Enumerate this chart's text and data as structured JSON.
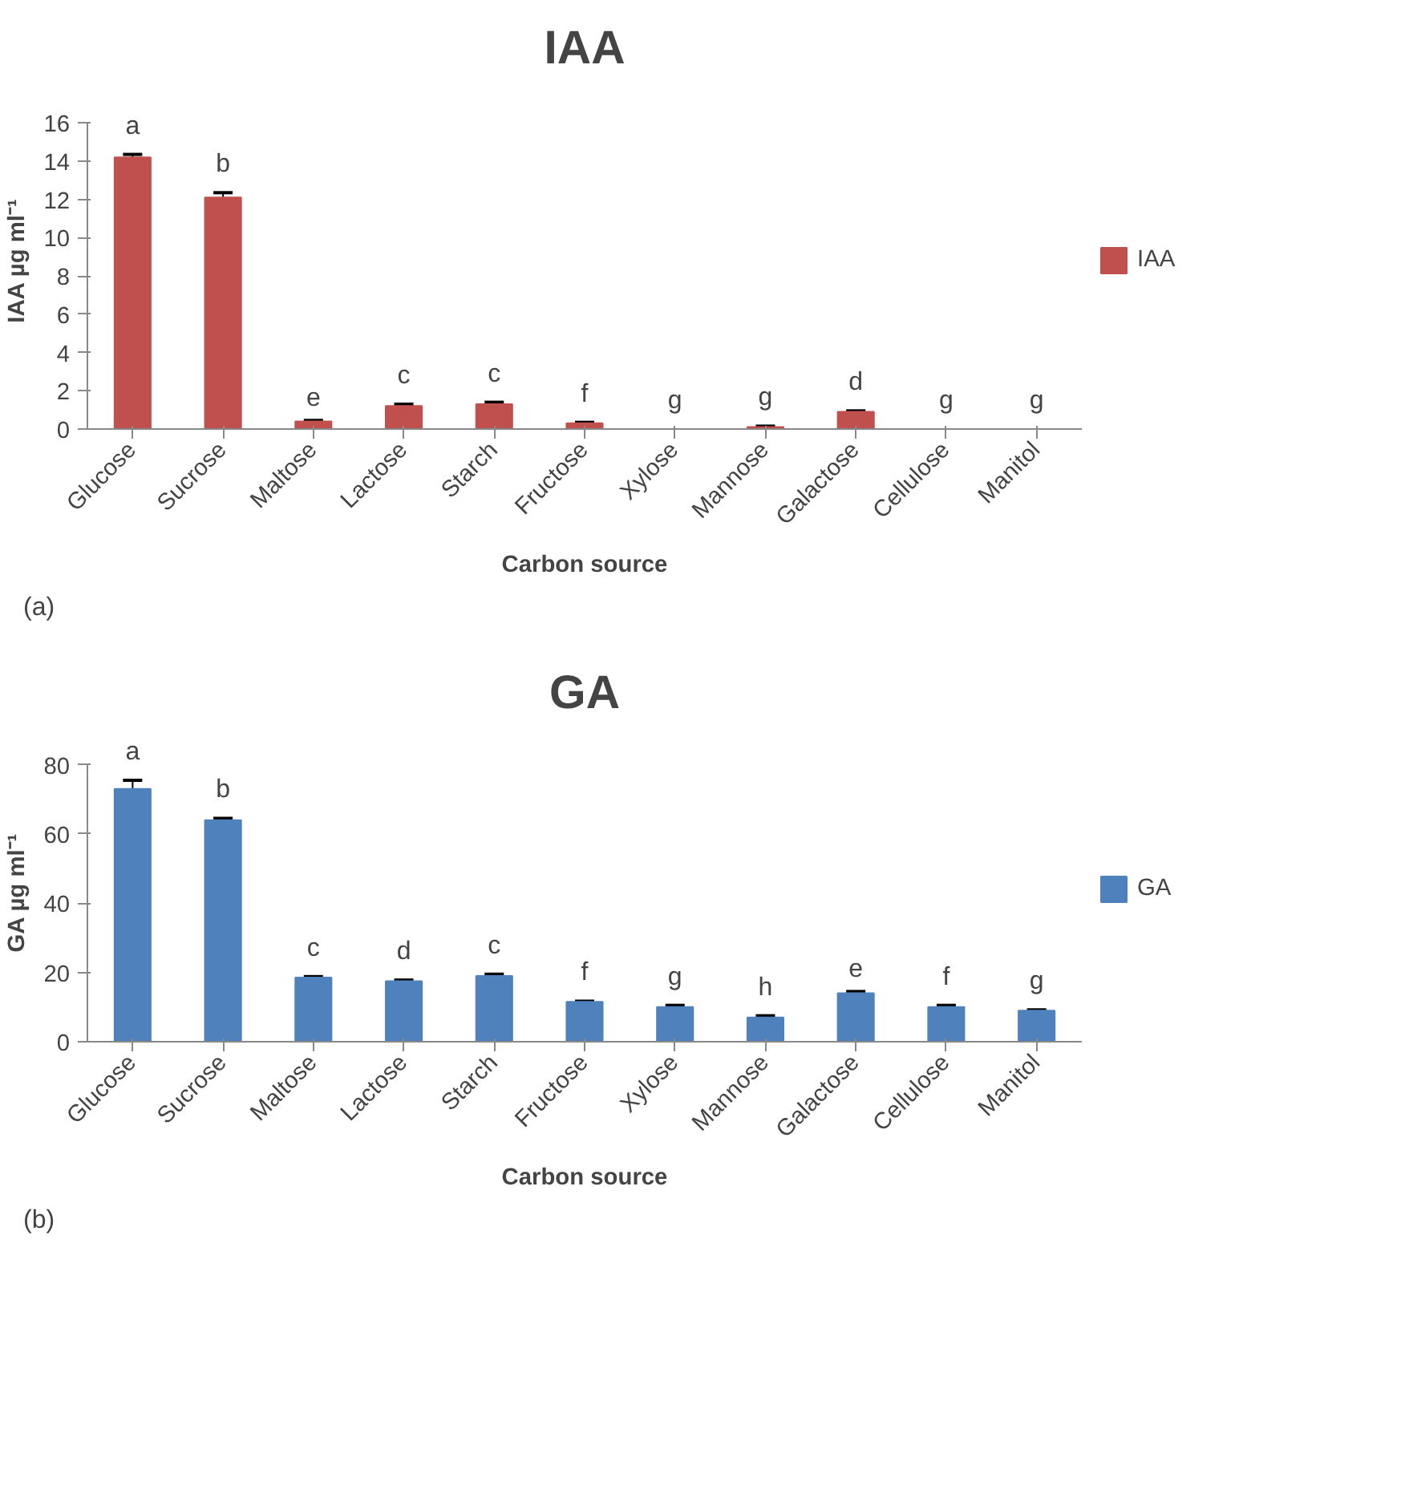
{
  "chart_data": [
    {
      "type": "bar",
      "title": "IAA",
      "xlabel": "Carbon source",
      "ylabel": "IAA µg ml⁻¹",
      "categories": [
        "Glucose",
        "Sucrose",
        "Maltose",
        "Lactose",
        "Starch",
        "Fructose",
        "Xylose",
        "Mannose",
        "Galactose",
        "Cellulose",
        "Manitol"
      ],
      "series": [
        {
          "name": "IAA",
          "color": "#c0504d",
          "values": [
            14.2,
            12.1,
            0.4,
            1.2,
            1.3,
            0.3,
            0,
            0.1,
            0.9,
            0,
            0
          ],
          "errors": [
            0.15,
            0.25,
            0.05,
            0.1,
            0.1,
            0.05,
            null,
            0.05,
            0.05,
            null,
            null
          ],
          "value_labels": [
            "a",
            "b",
            "e",
            "c",
            "c",
            "f",
            "g",
            "g",
            "d",
            "g",
            "g"
          ]
        }
      ],
      "ylim": [
        0,
        16
      ],
      "yticks": [
        0,
        2,
        4,
        6,
        8,
        10,
        12,
        14,
        16
      ],
      "grid": false,
      "legend": "right",
      "annotations": [
        "(a)"
      ]
    },
    {
      "type": "bar",
      "title": "GA",
      "xlabel": "Carbon source",
      "ylabel": "GA  µg ml⁻¹",
      "categories": [
        "Glucose",
        "Sucrose",
        "Maltose",
        "Lactose",
        "Starch",
        "Fructose",
        "Xylose",
        "Mannose",
        "Galactose",
        "Cellulose",
        "Manitol"
      ],
      "series": [
        {
          "name": "GA",
          "color": "#4f81bd",
          "values": [
            73,
            64,
            18.5,
            17.5,
            19,
            11.5,
            10,
            7,
            14,
            10,
            9
          ],
          "errors": [
            2.5,
            0.5,
            0.3,
            0.3,
            0.5,
            0.2,
            0.5,
            0.5,
            0.5,
            0.5,
            0.2
          ],
          "value_labels": [
            "a",
            "b",
            "c",
            "d",
            "c",
            "f",
            "g",
            "h",
            "e",
            "f",
            "g"
          ]
        }
      ],
      "ylim": [
        0,
        80
      ],
      "yticks": [
        0,
        20,
        40,
        60,
        80
      ],
      "grid": false,
      "legend": "right",
      "annotations": [
        "(b)"
      ]
    }
  ]
}
